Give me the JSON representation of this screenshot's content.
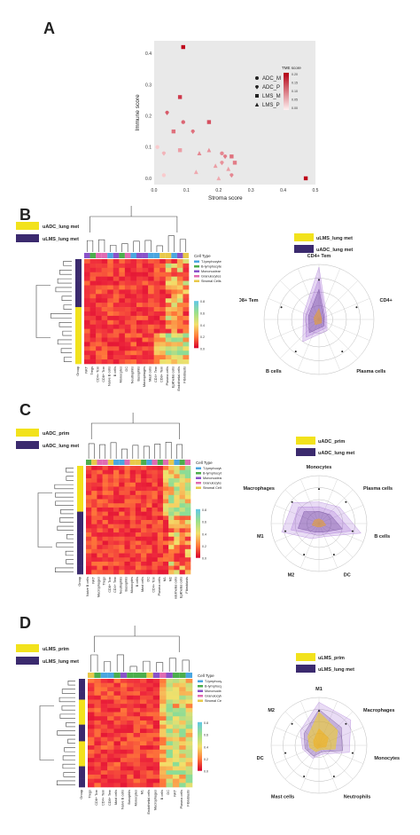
{
  "panels": {
    "a": "A",
    "b": "B",
    "c": "C",
    "d": "D"
  },
  "chart_data": [
    {
      "type": "scatter",
      "xlabel": "Stroma score",
      "ylabel": "Immune score",
      "xlim": [
        0.0,
        0.5
      ],
      "ylim": [
        -0.02,
        0.44
      ],
      "xticks": [
        "0.0",
        "0.1",
        "0.2",
        "0.3",
        "0.4",
        "0.5"
      ],
      "yticks": [
        "0.0",
        "0.1",
        "0.2",
        "0.3",
        "0.4"
      ],
      "shape_legend": [
        "ADC_M",
        "ADC_P",
        "LMS_M",
        "LMS_P"
      ],
      "colorbar_title": "TME score",
      "colorbar_ticks": [
        "0.20",
        "0.15",
        "0.10",
        "0.05",
        "0.00"
      ],
      "points": [
        {
          "x": 0.09,
          "y": 0.42,
          "c": 0.2,
          "g": "LMS_M"
        },
        {
          "x": 0.08,
          "y": 0.26,
          "c": 0.15,
          "g": "LMS_M"
        },
        {
          "x": 0.04,
          "y": 0.21,
          "c": 0.12,
          "g": "ADC_P"
        },
        {
          "x": 0.09,
          "y": 0.18,
          "c": 0.11,
          "g": "ADC_M"
        },
        {
          "x": 0.17,
          "y": 0.18,
          "c": 0.13,
          "g": "LMS_M"
        },
        {
          "x": 0.06,
          "y": 0.15,
          "c": 0.1,
          "g": "LMS_M"
        },
        {
          "x": 0.12,
          "y": 0.15,
          "c": 0.1,
          "g": "ADC_P"
        },
        {
          "x": 0.01,
          "y": 0.1,
          "c": 0.02,
          "g": "ADC_M"
        },
        {
          "x": 0.03,
          "y": 0.08,
          "c": 0.04,
          "g": "ADC_P"
        },
        {
          "x": 0.08,
          "y": 0.09,
          "c": 0.06,
          "g": "LMS_M"
        },
        {
          "x": 0.14,
          "y": 0.08,
          "c": 0.08,
          "g": "LMS_P"
        },
        {
          "x": 0.17,
          "y": 0.09,
          "c": 0.07,
          "g": "LMS_P"
        },
        {
          "x": 0.21,
          "y": 0.08,
          "c": 0.08,
          "g": "ADC_M"
        },
        {
          "x": 0.22,
          "y": 0.07,
          "c": 0.09,
          "g": "ADC_P"
        },
        {
          "x": 0.24,
          "y": 0.07,
          "c": 0.1,
          "g": "LMS_M"
        },
        {
          "x": 0.25,
          "y": 0.05,
          "c": 0.09,
          "g": "LMS_M"
        },
        {
          "x": 0.21,
          "y": 0.05,
          "c": 0.07,
          "g": "ADC_P"
        },
        {
          "x": 0.19,
          "y": 0.04,
          "c": 0.06,
          "g": "LMS_P"
        },
        {
          "x": 0.23,
          "y": 0.03,
          "c": 0.06,
          "g": "LMS_P"
        },
        {
          "x": 0.13,
          "y": 0.02,
          "c": 0.05,
          "g": "LMS_P"
        },
        {
          "x": 0.03,
          "y": 0.01,
          "c": 0.02,
          "g": "ADC_M"
        },
        {
          "x": 0.2,
          "y": 0.0,
          "c": 0.05,
          "g": "LMS_P"
        },
        {
          "x": 0.24,
          "y": 0.01,
          "c": 0.08,
          "g": "ADC_P"
        },
        {
          "x": 0.47,
          "y": 0.0,
          "c": 0.2,
          "g": "LMS_M"
        }
      ]
    },
    {
      "type": "heatmap",
      "panel": "B",
      "groups": [
        "uADC_lung met",
        "uLMS_lung met"
      ],
      "celltype_legend_title": "Cell Type",
      "celltypes": [
        "T-lymphocytes",
        "B-lymphocytes",
        "Mononuclear Phagocytes",
        "Granulocytes",
        "Stromal Cells"
      ],
      "columns": [
        "Group",
        "NKT",
        "Tregs",
        "CD4+ Tcm",
        "CD8+ Tcm",
        "Naive B cells",
        "B cells",
        "Monocytes",
        "DC",
        "Neutrophils",
        "Basophils",
        "Macrophages",
        "Mast cells",
        "CD4+ Tem",
        "CD8+ Tem",
        "Plasma cells",
        "Epithelial cells",
        "Endothelial cells",
        "Fibroblasts"
      ],
      "colorbar_ticks": [
        "0.8",
        "0.6",
        "0.4",
        "0.2",
        "0.0"
      ]
    },
    {
      "type": "area",
      "subtype": "radar",
      "panel": "B",
      "legend": [
        "uLMS_lung met",
        "uADC_lung met"
      ],
      "axes": [
        "CD4+ Tem",
        "CD4+",
        "Plasma cells",
        "B cells",
        "CD8+ Tem"
      ]
    },
    {
      "type": "heatmap",
      "panel": "C",
      "groups": [
        "uADC_prim",
        "uADC_lung met"
      ],
      "celltype_legend_title": "Cell Type",
      "celltypes": [
        "T-lymphocytes",
        "B-lymphocytes",
        "Mononuclear Phagocytes",
        "Granulocytes",
        "Stromal Cells"
      ],
      "columns": [
        "Group",
        "Naive B cells",
        "NKT",
        "Macrophages",
        "Tregs",
        "CD8+ Tcm",
        "CD4+ Tem",
        "Neutrophils",
        "Basophils",
        "Monocytes",
        "B cells",
        "Mast cells",
        "DC",
        "CD4+ Tcm",
        "Plasma cells",
        "M1",
        "M2",
        "Endothelial cells",
        "Epithelial cells",
        "Fibroblasts"
      ],
      "colorbar_ticks": [
        "0.8",
        "0.6",
        "0.4",
        "0.2",
        "0.0"
      ]
    },
    {
      "type": "area",
      "subtype": "radar",
      "panel": "C",
      "legend": [
        "uADC_prim",
        "uADC_lung met"
      ],
      "axes": [
        "Monocytes",
        "Plasma cells",
        "B cells",
        "DC",
        "M2",
        "M1",
        "Macrophages"
      ]
    },
    {
      "type": "heatmap",
      "panel": "D",
      "groups": [
        "uLMS_prim",
        "uLMS_lung met"
      ],
      "celltype_legend_title": "Cell Type",
      "celltypes": [
        "T-lymphocytes",
        "B-lymphocytes",
        "Mononuclear Phagocytes",
        "Granulocytes",
        "Stromal Cells"
      ],
      "columns": [
        "Group",
        "Tregs",
        "CD8+ Tcm",
        "CD4+ Tem",
        "CD8+ Tem",
        "Mast cells",
        "Naive B cells",
        "Basophils",
        "Monocytes",
        "M1",
        "Endothelial cells",
        "Macrophages",
        "B cells",
        "DC",
        "NKT",
        "Plasma cells",
        "Fibroblasts"
      ],
      "colorbar_ticks": [
        "0.8",
        "0.6",
        "0.4",
        "0.2",
        "0.0"
      ]
    },
    {
      "type": "area",
      "subtype": "radar",
      "panel": "D",
      "legend": [
        "uLMS_prim",
        "uLMS_lung met"
      ],
      "axes": [
        "M1",
        "Macrophages",
        "Monocytes",
        "Neutrophils",
        "Mast cells",
        "DC",
        "M2"
      ]
    }
  ],
  "colors": {
    "yellow": "#f2e21c",
    "purple": "#3b2a6e",
    "celltype_colors": [
      "#4aa6e0",
      "#4cae4c",
      "#8a52c9",
      "#e06bb2",
      "#e8c94a"
    ],
    "heat_low": "#d8002c",
    "heat_mid": "#ff7a3a",
    "heat_high": "#f3e06a"
  }
}
